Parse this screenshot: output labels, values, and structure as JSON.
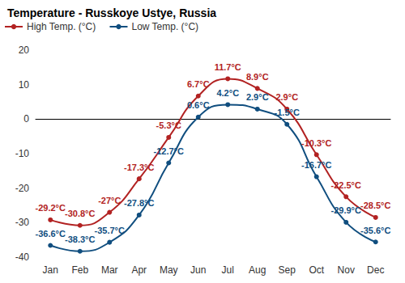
{
  "chart_data": {
    "type": "line",
    "title": "Temperature - Russkoye Ustye, Russia",
    "categories": [
      "Jan",
      "Feb",
      "Mar",
      "Apr",
      "May",
      "Jun",
      "Jul",
      "Aug",
      "Sep",
      "Oct",
      "Nov",
      "Dec"
    ],
    "series": [
      {
        "name": "High Temp. (°C)",
        "color": "#b22222",
        "marker": "circle",
        "line_style": "solid",
        "values": [
          -29.2,
          -30.8,
          -27,
          -17.3,
          -5.3,
          6.7,
          11.7,
          8.9,
          2.9,
          -10.3,
          -22.5,
          -28.5
        ],
        "value_labels": [
          "-29.2°C",
          "-30.8°C",
          "-27°C",
          "-17.3°C",
          "-5.3°C",
          "6.7°C",
          "11.7°C",
          "8.9°C",
          "2.9°C",
          "-10.3°C",
          "-22.5°C",
          "-28.5°C"
        ]
      },
      {
        "name": "Low Temp. (°C)",
        "color": "#104e7f",
        "marker": "circle",
        "line_style": "solid",
        "values": [
          -36.6,
          -38.3,
          -35.7,
          -27.8,
          -12.7,
          0.6,
          4.2,
          2.9,
          -1.5,
          -16.7,
          -29.9,
          -35.6
        ],
        "value_labels": [
          "-36.6°C",
          "-38.3°C",
          "-35.7°C",
          "-27.8°C",
          "-12.7°C",
          "0.6°C",
          "4.2°C",
          "2.9°C",
          "-1.5°C",
          "-16.7°C",
          "-29.9°C",
          "-35.6°C"
        ]
      }
    ],
    "ylim": [
      -40,
      20
    ],
    "yticks": [
      -40,
      -30,
      -20,
      -10,
      0,
      10,
      20
    ],
    "grid": false,
    "legend": "top",
    "data_labels": true
  }
}
